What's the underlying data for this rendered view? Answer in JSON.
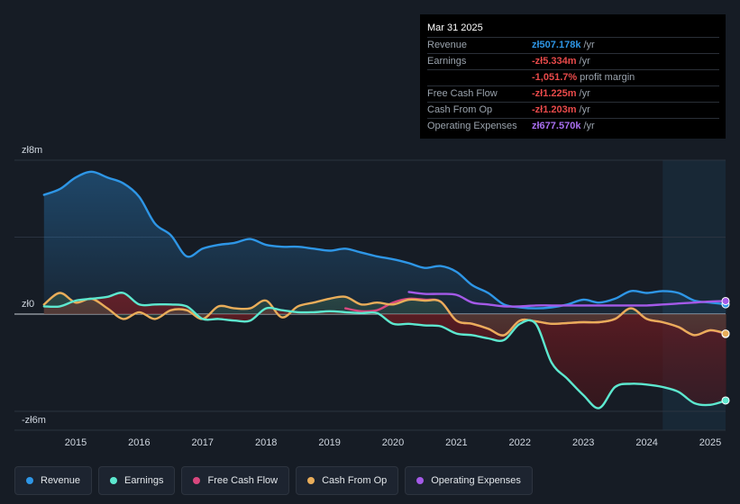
{
  "tooltip": {
    "date": "Mar 31 2025",
    "rows": [
      {
        "label": "Revenue",
        "value": "zł507.178k",
        "unit": "/yr",
        "color": "#2e96e6"
      },
      {
        "label": "Earnings",
        "value": "-zł5.334m",
        "unit": "/yr",
        "color": "#e84a4a"
      },
      {
        "label": "",
        "value": "-1,051.7%",
        "unit": "profit margin",
        "color": "#e84a4a"
      },
      {
        "label": "Free Cash Flow",
        "value": "-zł1.225m",
        "unit": "/yr",
        "color": "#e84a4a"
      },
      {
        "label": "Cash From Op",
        "value": "-zł1.203m",
        "unit": "/yr",
        "color": "#e84a4a"
      },
      {
        "label": "Operating Expenses",
        "value": "zł677.570k",
        "unit": "/yr",
        "color": "#a96ff0"
      }
    ]
  },
  "legend": [
    {
      "label": "Revenue",
      "color": "#2e96e6"
    },
    {
      "label": "Earnings",
      "color": "#5de8cf"
    },
    {
      "label": "Free Cash Flow",
      "color": "#d9477e"
    },
    {
      "label": "Cash From Op",
      "color": "#e9ad5a"
    },
    {
      "label": "Operating Expenses",
      "color": "#a45ae8"
    }
  ],
  "chart_data": {
    "type": "line",
    "title": "",
    "xlabel": "",
    "ylabel": "",
    "y_tick_labels": [
      "zł8m",
      "zł0",
      "-zł6m"
    ],
    "x_tick_labels": [
      "2015",
      "2016",
      "2017",
      "2018",
      "2019",
      "2020",
      "2021",
      "2022",
      "2023",
      "2024",
      "2025"
    ],
    "xlim": [
      2014.5,
      2025.25
    ],
    "ylim": [
      -6,
      8
    ],
    "unit": "zł millions",
    "forecast_shading_from": 2024.25,
    "series": [
      {
        "name": "Revenue",
        "color": "#2e96e6",
        "x": [
          2014.5,
          2014.75,
          2015.0,
          2015.25,
          2015.5,
          2015.75,
          2016.0,
          2016.25,
          2016.5,
          2016.75,
          2017.0,
          2017.25,
          2017.5,
          2017.75,
          2018.0,
          2018.25,
          2018.5,
          2018.75,
          2019.0,
          2019.25,
          2019.5,
          2019.75,
          2020.0,
          2020.25,
          2020.5,
          2020.75,
          2021.0,
          2021.25,
          2021.5,
          2021.75,
          2022.0,
          2022.25,
          2022.5,
          2022.75,
          2023.0,
          2023.25,
          2023.5,
          2023.75,
          2024.0,
          2024.25,
          2024.5,
          2024.75,
          2025.0,
          2025.25
        ],
        "y": [
          6.2,
          6.5,
          7.1,
          7.4,
          7.1,
          6.8,
          6.1,
          4.7,
          4.1,
          3.0,
          3.4,
          3.6,
          3.7,
          3.9,
          3.6,
          3.5,
          3.5,
          3.4,
          3.3,
          3.4,
          3.2,
          3.0,
          2.85,
          2.65,
          2.4,
          2.5,
          2.2,
          1.5,
          1.1,
          0.5,
          0.35,
          0.3,
          0.35,
          0.5,
          0.75,
          0.6,
          0.8,
          1.2,
          1.1,
          1.2,
          1.1,
          0.7,
          0.6,
          0.51
        ]
      },
      {
        "name": "Earnings",
        "color": "#5de8cf",
        "x": [
          2014.5,
          2014.75,
          2015.0,
          2015.25,
          2015.5,
          2015.75,
          2016.0,
          2016.25,
          2016.5,
          2016.75,
          2017.0,
          2017.25,
          2017.5,
          2017.75,
          2018.0,
          2018.25,
          2018.5,
          2018.75,
          2019.0,
          2019.25,
          2019.5,
          2019.75,
          2020.0,
          2020.25,
          2020.5,
          2020.75,
          2021.0,
          2021.25,
          2021.5,
          2021.75,
          2022.0,
          2022.25,
          2022.5,
          2022.75,
          2023.0,
          2023.25,
          2023.5,
          2023.75,
          2024.0,
          2024.25,
          2024.5,
          2024.75,
          2025.0,
          2025.25
        ],
        "y": [
          0.4,
          0.4,
          0.7,
          0.8,
          0.9,
          1.1,
          0.5,
          0.5,
          0.5,
          0.4,
          -0.3,
          -0.3,
          -0.4,
          -0.4,
          0.3,
          0.2,
          0.1,
          0.1,
          0.15,
          0.1,
          0.05,
          0.05,
          -0.6,
          -0.6,
          -0.7,
          -0.75,
          -1.2,
          -1.3,
          -1.5,
          -1.6,
          -0.6,
          -0.6,
          -3.0,
          -4.0,
          -5.0,
          -5.8,
          -4.5,
          -4.3,
          -4.35,
          -4.5,
          -4.8,
          -5.5,
          -5.6,
          -5.33
        ]
      },
      {
        "name": "Free Cash Flow",
        "color": "#d9477e",
        "x": [
          2019.25,
          2019.5,
          2019.75,
          2020.0,
          2020.25,
          2020.5,
          2020.75,
          2021.0,
          2021.25,
          2021.5,
          2021.75,
          2022.0,
          2022.25,
          2022.5,
          2022.75,
          2023.0,
          2023.25,
          2023.5,
          2023.75,
          2024.0,
          2024.25,
          2024.5,
          2024.75,
          2025.0,
          2025.25
        ],
        "y": [
          0.3,
          0.15,
          0.2,
          0.6,
          0.8,
          0.75,
          0.65,
          -0.4,
          -0.6,
          -0.9,
          -1.3,
          -0.4,
          -0.45,
          -0.6,
          -0.55,
          -0.5,
          -0.5,
          -0.3,
          0.3,
          -0.3,
          -0.5,
          -0.8,
          -1.3,
          -1.0,
          -1.23
        ]
      },
      {
        "name": "Cash From Op",
        "color": "#e9ad5a",
        "x": [
          2014.5,
          2014.75,
          2015.0,
          2015.25,
          2015.5,
          2015.75,
          2016.0,
          2016.25,
          2016.5,
          2016.75,
          2017.0,
          2017.25,
          2017.5,
          2017.75,
          2018.0,
          2018.25,
          2018.5,
          2018.75,
          2019.0,
          2019.25,
          2019.5,
          2019.75,
          2020.0,
          2020.25,
          2020.5,
          2020.75,
          2021.0,
          2021.25,
          2021.5,
          2021.75,
          2022.0,
          2022.25,
          2022.5,
          2022.75,
          2023.0,
          2023.25,
          2023.5,
          2023.75,
          2024.0,
          2024.25,
          2024.5,
          2024.75,
          2025.0,
          2025.25
        ],
        "y": [
          0.5,
          1.1,
          0.6,
          0.8,
          0.3,
          -0.3,
          0.1,
          -0.3,
          0.2,
          0.2,
          -0.3,
          0.4,
          0.3,
          0.3,
          0.7,
          -0.2,
          0.4,
          0.6,
          0.8,
          0.9,
          0.5,
          0.6,
          0.5,
          0.75,
          0.7,
          0.65,
          -0.4,
          -0.6,
          -0.9,
          -1.3,
          -0.4,
          -0.45,
          -0.6,
          -0.55,
          -0.5,
          -0.5,
          -0.3,
          0.3,
          -0.3,
          -0.5,
          -0.8,
          -1.3,
          -1.0,
          -1.2
        ]
      },
      {
        "name": "Operating Expenses",
        "color": "#a45ae8",
        "x": [
          2020.25,
          2020.5,
          2020.75,
          2021.0,
          2021.25,
          2021.5,
          2021.75,
          2022.0,
          2022.25,
          2022.5,
          2022.75,
          2023.0,
          2023.25,
          2023.5,
          2023.75,
          2024.0,
          2024.25,
          2024.5,
          2024.75,
          2025.0,
          2025.25
        ],
        "y": [
          1.15,
          1.05,
          1.05,
          1.0,
          0.6,
          0.5,
          0.4,
          0.4,
          0.45,
          0.45,
          0.45,
          0.45,
          0.45,
          0.45,
          0.45,
          0.45,
          0.5,
          0.55,
          0.6,
          0.65,
          0.68
        ]
      }
    ]
  }
}
